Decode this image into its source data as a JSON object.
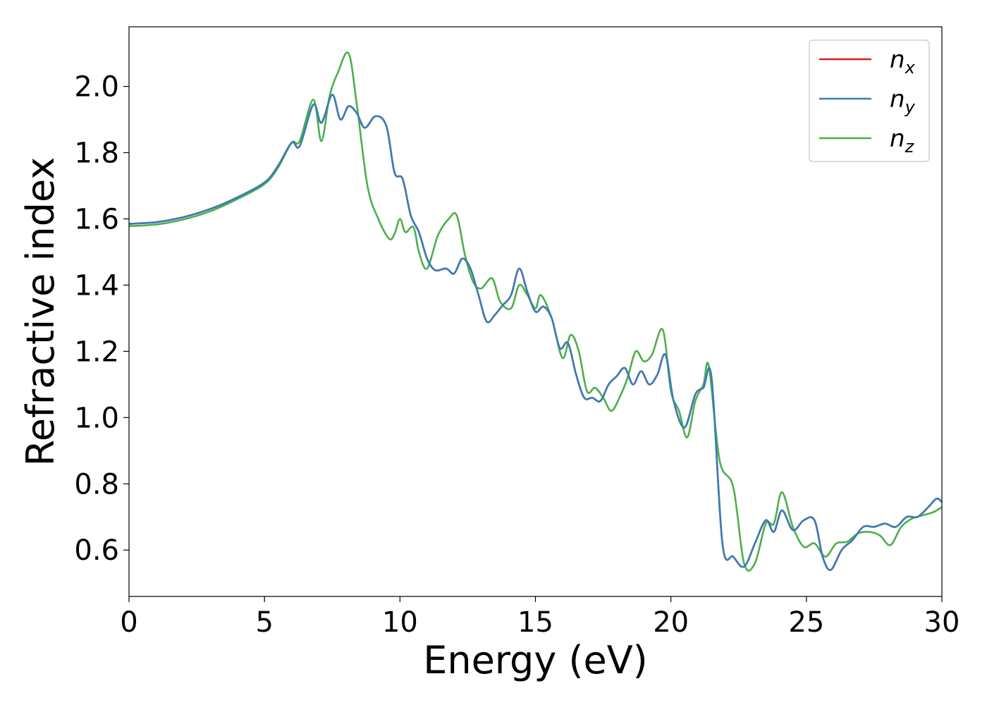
{
  "chart_data": {
    "type": "line",
    "xlabel": "Energy (eV)",
    "ylabel": "Refractive index",
    "xlim": [
      0,
      30
    ],
    "ylim": [
      0.46,
      2.18
    ],
    "xticks": [
      "0",
      "5",
      "10",
      "15",
      "20",
      "25",
      "30"
    ],
    "yticks": [
      "0.6",
      "0.8",
      "1.0",
      "1.2",
      "1.4",
      "1.6",
      "1.8",
      "2.0"
    ],
    "grid": false,
    "legend_position": "top-right",
    "series": [
      {
        "name": "n",
        "subscript": "x",
        "color": "#e41a1c",
        "x": [
          0,
          1,
          2,
          3,
          4,
          5,
          5.5,
          6,
          6.3,
          6.8,
          7.1,
          7.5,
          7.8,
          8.1,
          8.4,
          8.7,
          9.1,
          9.5,
          9.8,
          10.1,
          10.4,
          10.7,
          11,
          11.3,
          11.7,
          12,
          12.3,
          12.6,
          12.9,
          13.2,
          13.5,
          13.8,
          14.1,
          14.4,
          14.7,
          15,
          15.3,
          15.6,
          15.9,
          16.2,
          16.5,
          16.8,
          17.1,
          17.4,
          17.7,
          18,
          18.3,
          18.6,
          18.9,
          19.2,
          19.5,
          19.8,
          20.1,
          20.5,
          20.9,
          21.2,
          21.5,
          21.9,
          22.3,
          22.7,
          23.1,
          23.5,
          23.8,
          24.1,
          24.5,
          24.9,
          25.3,
          25.6,
          25.9,
          26.3,
          26.7,
          27.1,
          27.5,
          27.9,
          28.3,
          28.7,
          29.1,
          29.5,
          29.8,
          30
        ],
        "y": [
          1.585,
          1.59,
          1.605,
          1.63,
          1.665,
          1.71,
          1.76,
          1.83,
          1.82,
          1.945,
          1.89,
          1.975,
          1.9,
          1.94,
          1.92,
          1.875,
          1.91,
          1.88,
          1.74,
          1.72,
          1.61,
          1.56,
          1.48,
          1.445,
          1.45,
          1.435,
          1.48,
          1.45,
          1.37,
          1.29,
          1.31,
          1.34,
          1.37,
          1.45,
          1.38,
          1.32,
          1.335,
          1.3,
          1.21,
          1.225,
          1.13,
          1.06,
          1.06,
          1.05,
          1.1,
          1.125,
          1.15,
          1.1,
          1.14,
          1.1,
          1.13,
          1.19,
          1.05,
          0.97,
          1.07,
          1.09,
          1.12,
          0.62,
          0.58,
          0.55,
          0.62,
          0.69,
          0.655,
          0.72,
          0.66,
          0.69,
          0.69,
          0.58,
          0.54,
          0.6,
          0.63,
          0.67,
          0.67,
          0.68,
          0.67,
          0.7,
          0.7,
          0.73,
          0.755,
          0.745
        ]
      },
      {
        "name": "n",
        "subscript": "y",
        "color": "#377eb8",
        "x": [
          0,
          1,
          2,
          3,
          4,
          5,
          5.5,
          6,
          6.3,
          6.8,
          7.1,
          7.5,
          7.8,
          8.1,
          8.4,
          8.7,
          9.1,
          9.5,
          9.8,
          10.1,
          10.4,
          10.7,
          11,
          11.3,
          11.7,
          12,
          12.3,
          12.6,
          12.9,
          13.2,
          13.5,
          13.8,
          14.1,
          14.4,
          14.7,
          15,
          15.3,
          15.6,
          15.9,
          16.2,
          16.5,
          16.8,
          17.1,
          17.4,
          17.7,
          18,
          18.3,
          18.6,
          18.9,
          19.2,
          19.5,
          19.8,
          20.1,
          20.5,
          20.9,
          21.2,
          21.5,
          21.9,
          22.3,
          22.7,
          23.1,
          23.5,
          23.8,
          24.1,
          24.5,
          24.9,
          25.3,
          25.6,
          25.9,
          26.3,
          26.7,
          27.1,
          27.5,
          27.9,
          28.3,
          28.7,
          29.1,
          29.5,
          29.8,
          30
        ],
        "y": [
          1.585,
          1.59,
          1.605,
          1.63,
          1.665,
          1.71,
          1.76,
          1.83,
          1.82,
          1.945,
          1.89,
          1.975,
          1.9,
          1.94,
          1.92,
          1.875,
          1.91,
          1.88,
          1.74,
          1.72,
          1.61,
          1.56,
          1.48,
          1.445,
          1.45,
          1.435,
          1.48,
          1.45,
          1.37,
          1.29,
          1.31,
          1.34,
          1.37,
          1.45,
          1.38,
          1.32,
          1.335,
          1.3,
          1.21,
          1.225,
          1.13,
          1.06,
          1.06,
          1.05,
          1.1,
          1.125,
          1.15,
          1.1,
          1.14,
          1.1,
          1.13,
          1.19,
          1.05,
          0.97,
          1.07,
          1.09,
          1.12,
          0.62,
          0.58,
          0.55,
          0.62,
          0.69,
          0.655,
          0.72,
          0.66,
          0.69,
          0.69,
          0.58,
          0.54,
          0.6,
          0.63,
          0.67,
          0.67,
          0.68,
          0.67,
          0.7,
          0.7,
          0.73,
          0.755,
          0.745
        ]
      },
      {
        "name": "n",
        "subscript": "z",
        "color": "#4daf4a",
        "x": [
          0,
          1,
          2,
          3,
          4,
          5,
          5.5,
          6,
          6.3,
          6.8,
          7.1,
          7.4,
          7.7,
          8.1,
          8.4,
          8.8,
          9.2,
          9.6,
          9.8,
          10,
          10.2,
          10.5,
          10.7,
          11,
          11.4,
          11.8,
          12.1,
          12.4,
          12.7,
          13,
          13.4,
          13.7,
          14.1,
          14.4,
          14.7,
          15,
          15.2,
          15.6,
          16,
          16.3,
          16.6,
          16.9,
          17.2,
          17.5,
          17.8,
          18.1,
          18.4,
          18.7,
          19,
          19.3,
          19.7,
          20,
          20.3,
          20.6,
          20.9,
          21.2,
          21.4,
          21.8,
          22.3,
          22.7,
          23.1,
          23.5,
          23.8,
          24.1,
          24.5,
          24.9,
          25.3,
          25.7,
          26.1,
          26.5,
          26.9,
          27.3,
          27.7,
          28.1,
          28.5,
          28.9,
          29.3,
          29.7,
          30
        ],
        "y": [
          1.578,
          1.583,
          1.598,
          1.623,
          1.66,
          1.705,
          1.755,
          1.83,
          1.835,
          1.96,
          1.835,
          1.97,
          2.04,
          2.1,
          1.95,
          1.7,
          1.6,
          1.54,
          1.555,
          1.6,
          1.56,
          1.575,
          1.5,
          1.45,
          1.55,
          1.6,
          1.61,
          1.49,
          1.41,
          1.39,
          1.42,
          1.35,
          1.33,
          1.4,
          1.37,
          1.33,
          1.37,
          1.3,
          1.18,
          1.25,
          1.2,
          1.08,
          1.09,
          1.06,
          1.02,
          1.06,
          1.12,
          1.2,
          1.17,
          1.19,
          1.265,
          1.08,
          1.02,
          0.94,
          1.05,
          1.1,
          1.155,
          0.87,
          0.79,
          0.56,
          0.56,
          0.68,
          0.68,
          0.775,
          0.67,
          0.61,
          0.62,
          0.58,
          0.62,
          0.625,
          0.65,
          0.655,
          0.645,
          0.615,
          0.67,
          0.695,
          0.705,
          0.715,
          0.73
        ]
      }
    ]
  }
}
